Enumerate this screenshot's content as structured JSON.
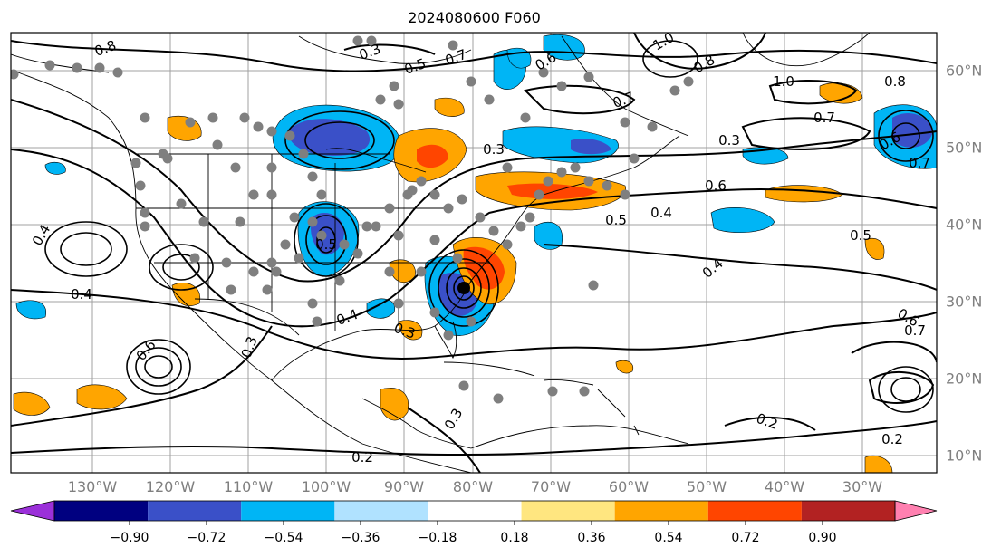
{
  "title": "2024080600 F060",
  "lon_labels": [
    "130°W",
    "120°W",
    "110°W",
    "100°W",
    "90°W",
    "80°W",
    "70°W",
    "60°W",
    "50°W",
    "40°W",
    "30°W"
  ],
  "lat_labels": [
    "60°N",
    "50°N",
    "40°N",
    "30°N",
    "20°N",
    "10°N"
  ],
  "contour_labels": [
    "0.3",
    "0.5",
    "0.7",
    "0.8",
    "1.0",
    "0.6",
    "0.7",
    "0.8",
    "1.0",
    "0.7",
    "0.8",
    "0.6",
    "0.7",
    "0.3",
    "0.6",
    "0.5",
    "0.4",
    "0.5",
    "0.4",
    "0.4",
    "0.4",
    "0.5",
    "0.3",
    "0.3",
    "0.3",
    "0.6",
    "0.2",
    "0.2",
    "0.2",
    "0.6",
    "0.7",
    "0.3",
    "0.4"
  ],
  "colorbar": {
    "ticks": [
      "−0.90",
      "−0.72",
      "−0.54",
      "−0.36",
      "−0.18",
      "0.18",
      "0.36",
      "0.54",
      "0.72",
      "0.90"
    ],
    "colors": {
      "under": "#9b30d9",
      "bins": [
        "#000080",
        "#3a50c8",
        "#00b5f5",
        "#b0e2ff",
        "#ffffff",
        "#ffe680",
        "#ffa500",
        "#ff4500",
        "#b22222"
      ],
      "over": "#ff80b0"
    }
  },
  "map_colors": {
    "blue_light": "#00b5f5",
    "blue_mid": "#3a50c8",
    "orange": "#ffa500",
    "red": "#ff4500",
    "gray_dot": "#7f7f7f",
    "grid": "#a0a0a0"
  }
}
